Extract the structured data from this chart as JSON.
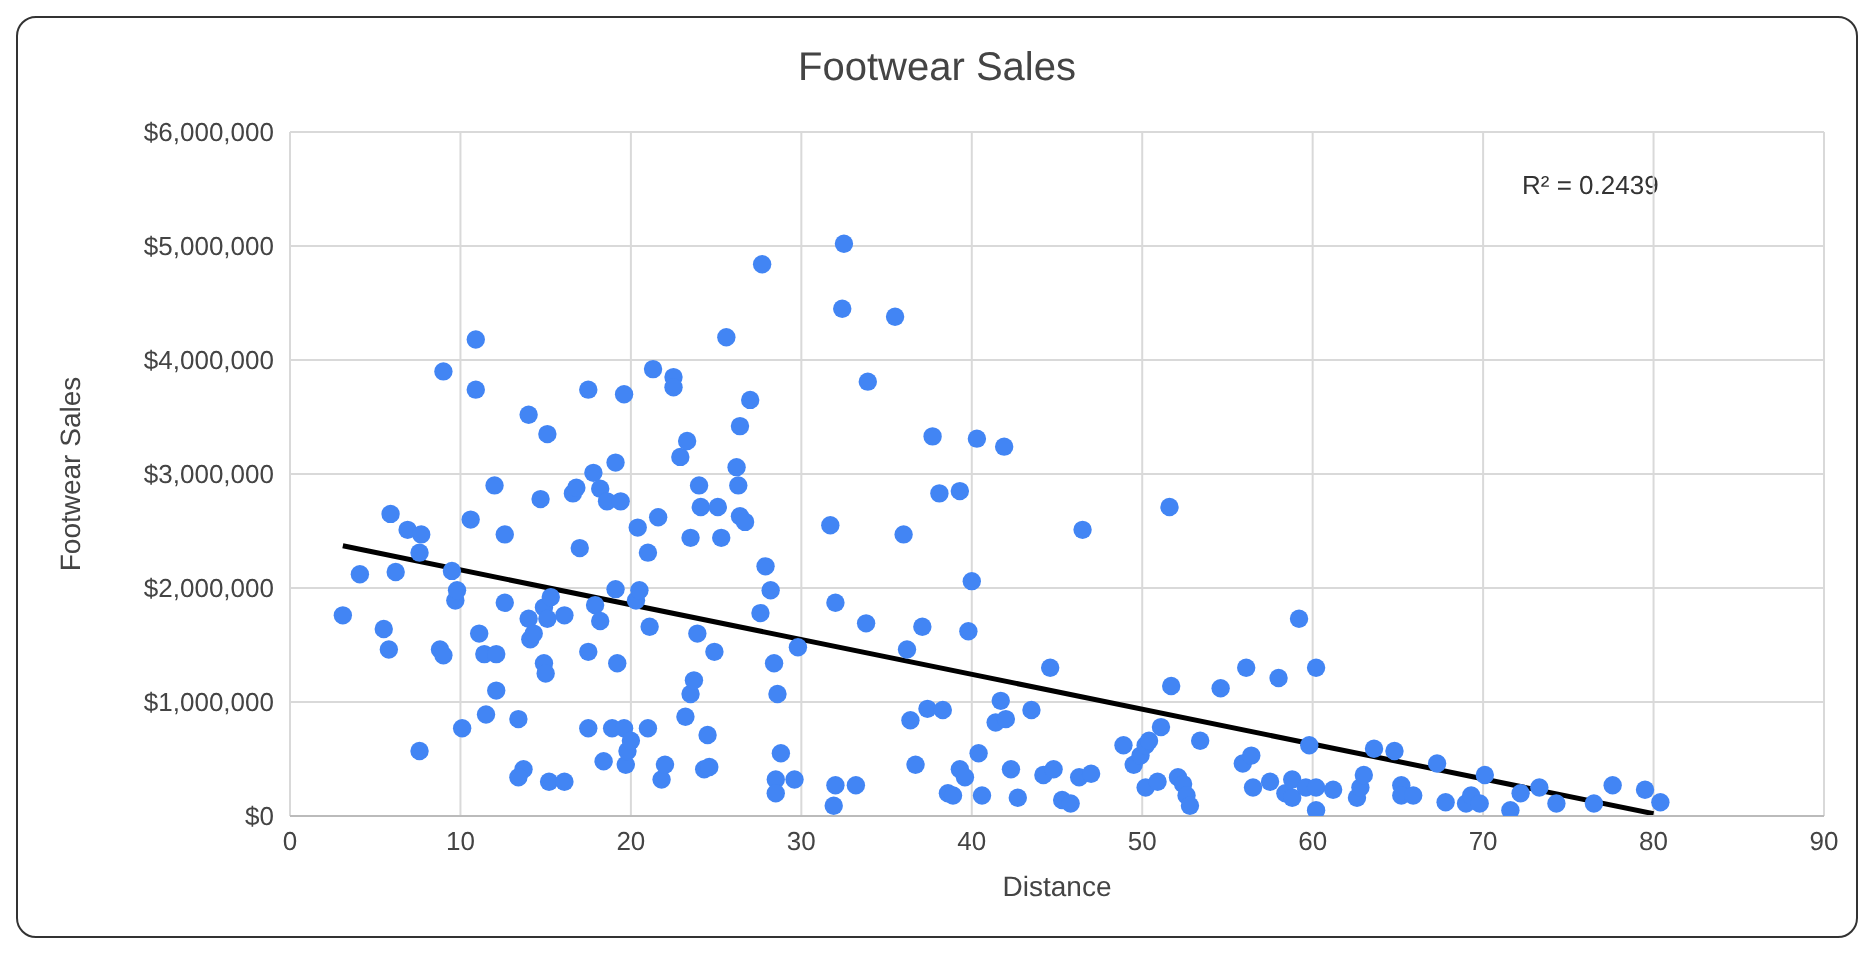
{
  "chart_data": {
    "type": "scatter",
    "title": "Footwear Sales",
    "xlabel": "Distance",
    "ylabel": "Footwear Sales",
    "xlim": [
      0,
      90
    ],
    "xticks": [
      0,
      10,
      20,
      30,
      40,
      50,
      60,
      70,
      80,
      90
    ],
    "ylim": [
      0,
      6000000
    ],
    "yticks": [
      {
        "value": 0,
        "label": "$0"
      },
      {
        "value": 1000000,
        "label": "$1,000,000"
      },
      {
        "value": 2000000,
        "label": "$2,000,000"
      },
      {
        "value": 3000000,
        "label": "$3,000,000"
      },
      {
        "value": 4000000,
        "label": "$4,000,000"
      },
      {
        "value": 5000000,
        "label": "$5,000,000"
      },
      {
        "value": 6000000,
        "label": "$6,000,000"
      }
    ],
    "grid": true,
    "legend": false,
    "annotations": [
      "R² = 0.2439"
    ],
    "series": [
      {
        "type": "scatter",
        "color": "#4285f4",
        "marker": "circle",
        "x": [
          3.1,
          4.1,
          5.5,
          5.8,
          5.9,
          6.2,
          6.9,
          7.7,
          7.6,
          7.6,
          9.0,
          8.8,
          9.0,
          9.5,
          9.7,
          9.8,
          10.1,
          10.9,
          10.9,
          10.6,
          11.1,
          11.4,
          11.5,
          12.1,
          12.1,
          12.0,
          12.6,
          12.6,
          13.4,
          13.7,
          13.4,
          14.0,
          14.0,
          14.1,
          14.3,
          14.7,
          14.9,
          15.1,
          14.9,
          15.0,
          15.1,
          15.2,
          15.3,
          16.1,
          16.1,
          16.6,
          16.8,
          17.0,
          17.5,
          17.5,
          17.5,
          17.8,
          17.9,
          18.2,
          18.2,
          18.4,
          18.6,
          18.9,
          19.1,
          19.1,
          19.2,
          19.4,
          19.6,
          19.6,
          19.7,
          19.8,
          20.0,
          20.3,
          20.4,
          20.5,
          21.0,
          21.1,
          21.0,
          21.3,
          21.6,
          21.8,
          22.0,
          22.5,
          22.5,
          22.9,
          23.2,
          23.3,
          23.5,
          23.5,
          23.7,
          24.0,
          23.9,
          24.1,
          24.3,
          24.5,
          24.6,
          24.9,
          25.1,
          25.3,
          25.6,
          26.2,
          26.3,
          26.4,
          26.4,
          26.7,
          27.0,
          27.6,
          27.7,
          27.9,
          28.2,
          28.4,
          28.6,
          28.8,
          28.5,
          28.5,
          29.8,
          29.6,
          31.7,
          32.0,
          32.5,
          32.4,
          32.0,
          31.9,
          33.2,
          33.8,
          33.9,
          35.5,
          36.0,
          36.2,
          36.4,
          36.7,
          37.1,
          37.4,
          37.7,
          38.1,
          38.3,
          38.6,
          38.9,
          39.3,
          39.3,
          39.6,
          39.8,
          40.0,
          40.3,
          40.4,
          40.6,
          41.4,
          41.7,
          41.9,
          42.0,
          42.3,
          42.7,
          43.5,
          44.2,
          44.6,
          44.8,
          45.3,
          45.8,
          46.5,
          46.3,
          47.0,
          48.9,
          49.5,
          49.9,
          50.2,
          50.4,
          50.2,
          50.9,
          51.1,
          51.6,
          51.7,
          52.1,
          52.4,
          52.6,
          52.8,
          53.4,
          54.6,
          55.9,
          56.1,
          56.4,
          56.5,
          57.5,
          58.0,
          58.4,
          58.8,
          59.2,
          58.8,
          59.6,
          59.8,
          60.2,
          60.2,
          60.2,
          61.2,
          62.6,
          62.8,
          63.0,
          63.6,
          64.8,
          65.2,
          65.2,
          65.9,
          67.3,
          67.8,
          69.0,
          69.3,
          69.8,
          70.1,
          71.6,
          72.2,
          73.3,
          74.3,
          76.5,
          77.6,
          79.5,
          80.4
        ],
        "values": [
          1760000,
          2120000,
          1640000,
          1460000,
          2650000,
          2140000,
          2510000,
          2470000,
          2310000,
          570000,
          3900000,
          1460000,
          1410000,
          2150000,
          1890000,
          1980000,
          770000,
          4180000,
          3740000,
          2600000,
          1600000,
          1420000,
          890000,
          1100000,
          1420000,
          2900000,
          2470000,
          1870000,
          850000,
          410000,
          340000,
          3520000,
          1730000,
          1550000,
          1600000,
          2780000,
          1830000,
          3350000,
          1340000,
          1250000,
          1730000,
          300000,
          1920000,
          1760000,
          300000,
          2830000,
          2880000,
          2350000,
          3740000,
          1440000,
          770000,
          3010000,
          1850000,
          2870000,
          1710000,
          480000,
          2760000,
          770000,
          3100000,
          1990000,
          1340000,
          2760000,
          3700000,
          770000,
          450000,
          570000,
          660000,
          1890000,
          2530000,
          1980000,
          770000,
          1660000,
          2310000,
          3920000,
          2620000,
          320000,
          450000,
          3850000,
          3760000,
          3150000,
          870000,
          3290000,
          2440000,
          1070000,
          1190000,
          2900000,
          1600000,
          2710000,
          410000,
          710000,
          430000,
          1440000,
          2710000,
          2440000,
          4200000,
          3060000,
          2900000,
          3420000,
          2630000,
          2580000,
          3650000,
          1780000,
          4840000,
          2190000,
          1980000,
          1340000,
          1070000,
          550000,
          320000,
          200000,
          1480000,
          320000,
          2550000,
          1870000,
          5020000,
          4450000,
          270000,
          90000,
          270000,
          1690000,
          3810000,
          4380000,
          2470000,
          1460000,
          840000,
          450000,
          1660000,
          940000,
          3330000,
          2830000,
          930000,
          200000,
          180000,
          2850000,
          410000,
          340000,
          1620000,
          2060000,
          3310000,
          550000,
          180000,
          820000,
          1010000,
          3240000,
          850000,
          410000,
          160000,
          930000,
          360000,
          1300000,
          410000,
          140000,
          110000,
          2510000,
          340000,
          370000,
          620000,
          450000,
          530000,
          620000,
          660000,
          250000,
          300000,
          780000,
          2710000,
          1140000,
          340000,
          280000,
          180000,
          90000,
          660000,
          1120000,
          460000,
          1300000,
          530000,
          250000,
          300000,
          1210000,
          200000,
          320000,
          1730000,
          160000,
          250000,
          620000,
          1300000,
          50000,
          250000,
          230000,
          160000,
          250000,
          360000,
          590000,
          570000,
          270000,
          180000,
          180000,
          460000,
          120000,
          110000,
          180000,
          110000,
          360000,
          50000,
          200000,
          250000,
          110000,
          110000,
          270000,
          230000,
          120000
        ]
      },
      {
        "type": "line",
        "color": "#000000",
        "marker": "none",
        "x": [
          3.1,
          80
        ],
        "values": [
          2370000,
          20000
        ]
      }
    ]
  }
}
